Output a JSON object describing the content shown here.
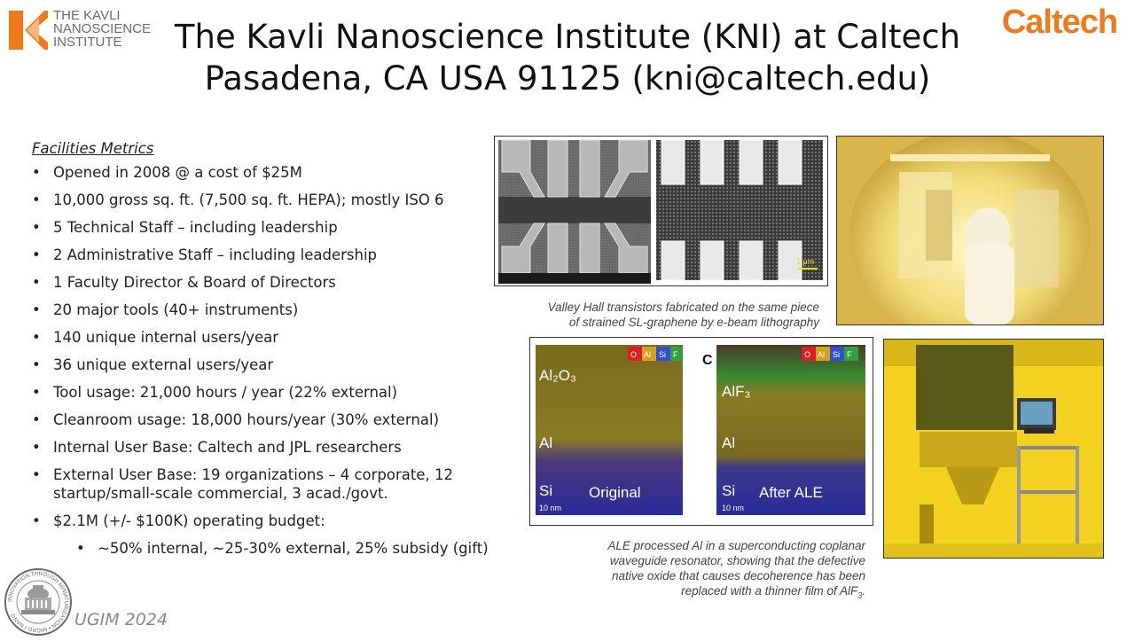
{
  "header": {
    "title_line1": "The Kavli Nanoscience Institute (KNI) at Caltech",
    "title_line2": "Pasadena, CA USA 91125 (kni@caltech.edu)",
    "kavli_logo_lines": [
      "THE KAVLI",
      "NANOSCIENCE",
      "INSTITUTE"
    ],
    "caltech_logo": "Caltech"
  },
  "metrics": {
    "heading": "Facilities Metrics",
    "items": [
      "Opened in 2008 @ a cost of $25M",
      "10,000 gross sq. ft. (7,500 sq. ft. HEPA); mostly ISO 6",
      "5 Technical Staff – including leadership",
      "2 Administrative Staff – including leadership",
      "1 Faculty Director & Board of Directors",
      "20 major tools (40+ instruments)",
      "140 unique internal users/year",
      "36 unique external users/year",
      "Tool usage: 21,000 hours / year (22% external)",
      "Cleanroom usage: 18,000 hours/year (30% external)",
      "Internal User Base: Caltech and JPL researchers",
      "External User Base: 19 organizations – 4 corporate, 12 startup/small-scale commercial, 3 acad./govt.",
      "$2.1M (+/- $100K) operating budget:"
    ],
    "sub_item": "~50% internal, ~25-30% external, 25% subsidy (gift)"
  },
  "figures": {
    "sem": {
      "scale_label": "1 μm",
      "caption_line1": "Valley Hall transistors fabricated on the same piece",
      "caption_line2": "of strained SL-graphene by e-beam lithography"
    },
    "eds": {
      "panel_label": "C",
      "legend": [
        "O",
        "Al",
        "Si",
        "F"
      ],
      "legend_colors": [
        "#e02020",
        "#d4a020",
        "#3050d0",
        "#30a040"
      ],
      "left": {
        "top_label": "Al₂O₃",
        "mid_label": "Al",
        "bottom_label": "Si",
        "title": "Original",
        "scale": "10 nm"
      },
      "right": {
        "top_label": "AlF₃",
        "mid_label": "Al",
        "bottom_label": "Si",
        "title": "After ALE",
        "scale": "10 nm"
      }
    },
    "ale_caption": {
      "line1": "ALE processed Al in a superconducting coplanar",
      "line2": "waveguide resonator, showing that the defective",
      "line3": "native oxide that causes decoherence has been",
      "line4_prefix": "replaced with a thinner film of AlF",
      "line4_sub": "3",
      "line4_suffix": "."
    }
  },
  "seal": {
    "text": "INNOVATION THROUGH MINIATURIZATION • MICRO / NANO"
  },
  "footer": {
    "ugim": "UGIM 2024"
  },
  "colors": {
    "caltech_orange": "#f07a1a",
    "kavli_orange": "#f07a1a",
    "cleanroom_yellow": "#f2d21e"
  }
}
